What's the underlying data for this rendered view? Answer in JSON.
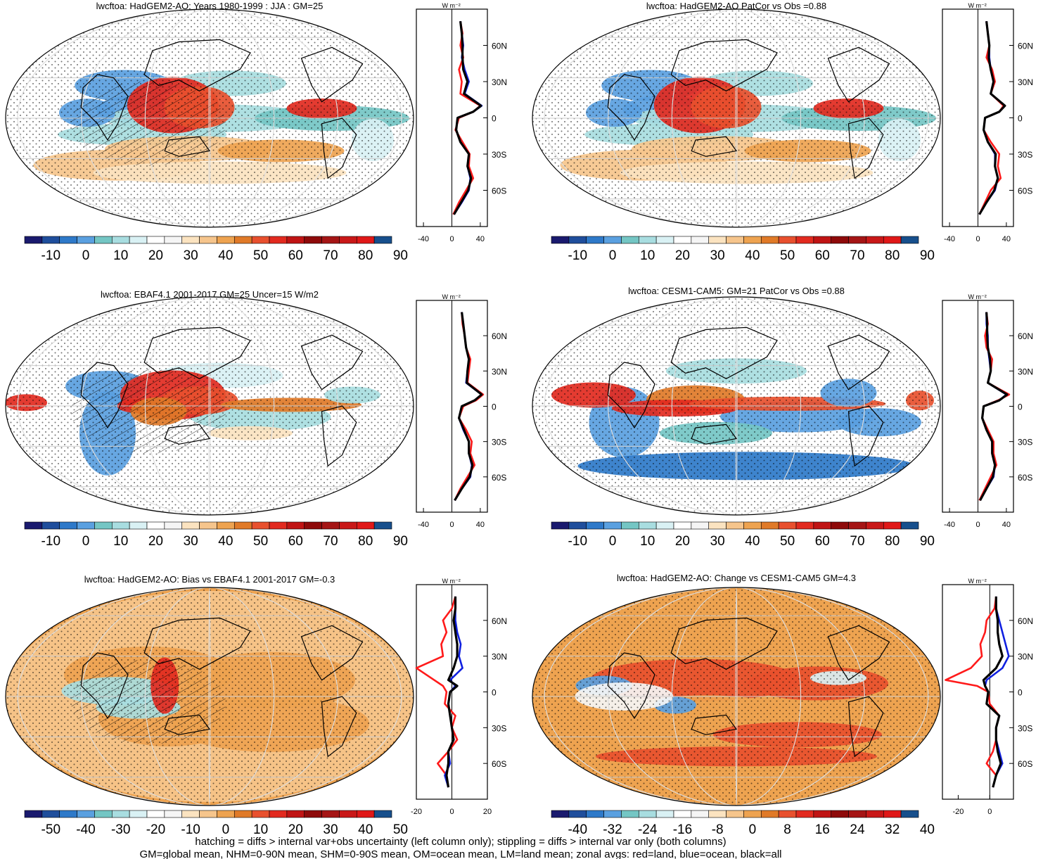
{
  "colors": {
    "palette_positive": [
      "#1a1a6e",
      "#1f4e9c",
      "#2e79c9",
      "#5aa0e0",
      "#74c6c4",
      "#a8dde0",
      "#d9f1f4",
      "#ffffff",
      "#f5f5f5",
      "#fbe3c0",
      "#f6c58c",
      "#eea350",
      "#e07a28",
      "#e8502e",
      "#e22a1f",
      "#c01414",
      "#8e0a0a",
      "#a51515",
      "#c91818",
      "#e01818",
      "#174f8c"
    ],
    "land": "#000000",
    "zonal_land": "#ff1a1a",
    "zonal_ocean": "#1020e0",
    "zonal_all": "#000000"
  },
  "footnote": {
    "line1": "hatching = diffs > internal var+obs uncertainty (left column only); stippling = diffs > internal var only (both columns)",
    "line2": "GM=global mean, NHM=0-90N mean, SHM=0-90S mean, OM=ocean mean, LM=land mean; zonal avgs: red=land, blue=ocean, black=all"
  },
  "zonal_unit": "W m⁻²",
  "lat_ticks": [
    "60N",
    "30N",
    "0",
    "30S",
    "60S"
  ],
  "chart_data": [
    {
      "type": "heatmap",
      "title": "lwcftoa: HadGEM2-AO: Years 1980-1999 : JJA : GM=25",
      "colorbar_ticks": [
        "-10",
        "0",
        "10",
        "20",
        "30",
        "40",
        "50",
        "60",
        "70",
        "80",
        "90"
      ],
      "zonal_xticks": [
        "-40",
        "0",
        "40"
      ],
      "zonal_xlim": [
        -50,
        50
      ],
      "zonal_series": {
        "lat": [
          80,
          70,
          60,
          50,
          40,
          30,
          20,
          10,
          5,
          0,
          -10,
          -20,
          -30,
          -40,
          -50,
          -60,
          -70,
          -80
        ],
        "land": [
          12,
          15,
          12,
          16,
          10,
          14,
          12,
          40,
          30,
          10,
          5,
          15,
          25,
          24,
          30,
          20,
          10,
          2
        ],
        "ocean": [
          12,
          14,
          16,
          14,
          18,
          24,
          18,
          42,
          30,
          8,
          6,
          12,
          24,
          22,
          26,
          24,
          14,
          3
        ],
        "all": [
          12,
          14,
          15,
          15,
          16,
          22,
          17,
          41,
          30,
          8,
          6,
          12,
          24,
          22,
          27,
          23,
          13,
          3
        ]
      }
    },
    {
      "type": "heatmap",
      "title": "lwcftoa: HadGEM2-AO PatCor vs Obs =0.88",
      "colorbar_ticks": [
        "-10",
        "0",
        "10",
        "20",
        "30",
        "40",
        "50",
        "60",
        "70",
        "80",
        "90"
      ],
      "zonal_xticks": [
        "-40",
        "0",
        "40"
      ],
      "zonal_xlim": [
        -50,
        50
      ],
      "zonal_series": {
        "lat": [
          80,
          70,
          60,
          50,
          40,
          30,
          20,
          10,
          5,
          0,
          -10,
          -20,
          -30,
          -40,
          -50,
          -60,
          -70,
          -80
        ],
        "land": [
          12,
          14,
          16,
          12,
          20,
          24,
          18,
          36,
          30,
          10,
          8,
          18,
          30,
          28,
          32,
          18,
          10,
          2
        ],
        "ocean": [
          12,
          14,
          16,
          16,
          18,
          22,
          18,
          38,
          30,
          10,
          8,
          14,
          24,
          24,
          28,
          24,
          12,
          2
        ],
        "all": [
          12,
          14,
          16,
          15,
          18,
          22,
          18,
          38,
          30,
          10,
          8,
          14,
          25,
          24,
          28,
          23,
          12,
          2
        ]
      }
    },
    {
      "type": "heatmap",
      "title": "lwcftoa: EBAF4.1 2001-2017 GM=25 Uncer=15 W/m2",
      "colorbar_ticks": [
        "-10",
        "0",
        "10",
        "20",
        "30",
        "40",
        "50",
        "60",
        "70",
        "80",
        "90"
      ],
      "zonal_xticks": [
        "-40",
        "0",
        "40"
      ],
      "zonal_xlim": [
        -50,
        50
      ],
      "zonal_series": {
        "lat": [
          80,
          70,
          60,
          50,
          40,
          30,
          20,
          10,
          5,
          0,
          -10,
          -20,
          -30,
          -40,
          -50,
          -60,
          -70,
          -80
        ],
        "land": [
          14,
          15,
          18,
          20,
          26,
          24,
          22,
          44,
          34,
          16,
          10,
          20,
          28,
          26,
          32,
          22,
          12,
          4
        ],
        "ocean": [
          14,
          16,
          18,
          20,
          24,
          22,
          20,
          42,
          32,
          14,
          10,
          16,
          24,
          24,
          28,
          26,
          14,
          4
        ],
        "all": [
          14,
          16,
          18,
          20,
          24,
          22,
          21,
          42,
          32,
          14,
          10,
          17,
          24,
          24,
          29,
          25,
          14,
          4
        ]
      }
    },
    {
      "type": "heatmap",
      "title": "lwcftoa: CESM1-CAM5: GM=21 PatCor vs Obs =0.88",
      "colorbar_ticks": [
        "-10",
        "0",
        "10",
        "20",
        "30",
        "40",
        "50",
        "60",
        "70",
        "80",
        "90"
      ],
      "zonal_xticks": [
        "-40",
        "0",
        "40"
      ],
      "zonal_xlim": [
        -50,
        50
      ],
      "zonal_series": {
        "lat": [
          80,
          70,
          60,
          50,
          40,
          30,
          20,
          10,
          5,
          0,
          -10,
          -20,
          -30,
          -40,
          -50,
          -60,
          -70,
          -80
        ],
        "land": [
          12,
          14,
          10,
          12,
          20,
          18,
          14,
          44,
          28,
          8,
          6,
          14,
          22,
          22,
          26,
          18,
          10,
          2
        ],
        "ocean": [
          12,
          12,
          14,
          14,
          16,
          18,
          14,
          40,
          30,
          8,
          6,
          12,
          20,
          20,
          24,
          22,
          12,
          3
        ],
        "all": [
          12,
          13,
          13,
          14,
          17,
          18,
          14,
          41,
          30,
          8,
          6,
          12,
          20,
          20,
          24,
          21,
          12,
          3
        ]
      }
    },
    {
      "type": "heatmap",
      "title": "lwcftoa: HadGEM2-AO: Bias vs EBAF4.1 2001-2017 GM=-0.3",
      "colorbar_ticks": [
        "-50",
        "-40",
        "-30",
        "-20",
        "-10",
        "0",
        "10",
        "20",
        "30",
        "40",
        "50"
      ],
      "zonal_xticks": [
        "-20",
        "0",
        "20"
      ],
      "zonal_xlim": [
        -20,
        20
      ],
      "zonal_series": {
        "lat": [
          80,
          70,
          60,
          50,
          40,
          30,
          20,
          10,
          5,
          0,
          -10,
          -20,
          -30,
          -40,
          -50,
          -60,
          -70,
          -80
        ],
        "land": [
          2,
          0,
          -5,
          -3,
          -6,
          -5,
          -20,
          -10,
          -5,
          -3,
          -4,
          2,
          0,
          3,
          -2,
          -8,
          -3,
          -2
        ],
        "ocean": [
          2,
          2,
          2,
          3,
          5,
          4,
          6,
          -1,
          2,
          -1,
          -2,
          -1,
          0,
          1,
          -2,
          -1,
          -4,
          -2
        ],
        "all": [
          2,
          2,
          1,
          2,
          3,
          3,
          1,
          -2,
          3,
          -1,
          -2,
          -1,
          0,
          1,
          -2,
          -2,
          -3,
          -2
        ]
      }
    },
    {
      "type": "heatmap",
      "title": "lwcftoa: HadGEM2-AO: Change vs CESM1-CAM5 GM=4.3",
      "colorbar_ticks": [
        "-40",
        "-32",
        "-24",
        "-16",
        "-8",
        "0",
        "8",
        "16",
        "24",
        "32",
        "40"
      ],
      "zonal_xticks": [
        "-20",
        "0"
      ],
      "zonal_xlim": [
        -30,
        15
      ],
      "zonal_series": {
        "lat": [
          80,
          70,
          60,
          50,
          40,
          30,
          20,
          10,
          5,
          0,
          -10,
          -20,
          -30,
          -40,
          -50,
          -60,
          -70,
          -80
        ],
        "land": [
          4,
          3,
          -2,
          -3,
          -6,
          -5,
          -12,
          -28,
          -8,
          -1,
          0,
          6,
          4,
          4,
          2,
          -2,
          4,
          2
        ],
        "ocean": [
          4,
          4,
          6,
          8,
          10,
          12,
          8,
          -2,
          -3,
          -1,
          -2,
          6,
          4,
          4,
          6,
          8,
          4,
          2
        ],
        "all": [
          4,
          4,
          5,
          5,
          6,
          8,
          4,
          -4,
          -3,
          -1,
          -2,
          6,
          4,
          4,
          5,
          7,
          4,
          2
        ]
      }
    }
  ]
}
